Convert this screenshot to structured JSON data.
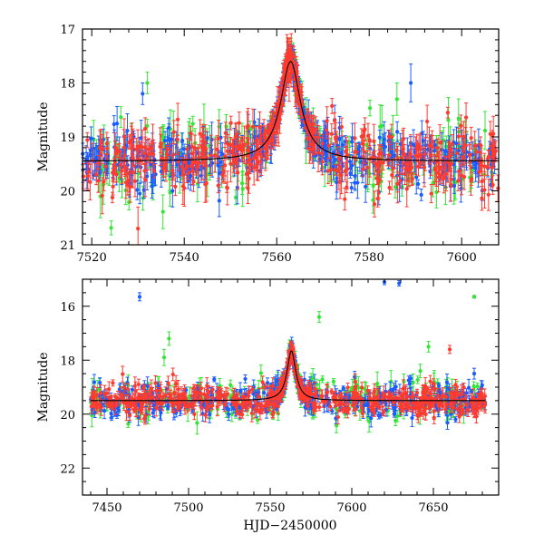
{
  "colors": {
    "green": "#33e633",
    "blue": "#1a5cff",
    "red": "#ff3a2e",
    "model": "#000000"
  },
  "chart_data": [
    {
      "type": "scatter",
      "title": "",
      "xlabel": "",
      "ylabel": "Magnitude",
      "xlim": [
        7518,
        7608
      ],
      "ylim": [
        21,
        17
      ],
      "x_ticks": [
        7520,
        7540,
        7560,
        7580,
        7600
      ],
      "x_tick_labels": [
        "7520",
        "7540",
        "7560",
        "7580",
        "7600"
      ],
      "y_ticks": [
        17,
        18,
        19,
        20,
        21
      ],
      "y_tick_labels": [
        "17",
        "18",
        "19",
        "20",
        "21"
      ],
      "baseline_mag": 19.45,
      "peak": {
        "x": 7563.0,
        "mag": 17.6,
        "width": 2.6
      },
      "x_range": [
        7518,
        7608
      ],
      "series": [
        {
          "name": "green",
          "color": "#33e633",
          "n_points": 230,
          "scatter": 0.35,
          "err": 0.25,
          "seed": 11
        },
        {
          "name": "blue",
          "color": "#1a5cff",
          "n_points": 480,
          "scatter": 0.25,
          "err": 0.2,
          "seed": 23
        },
        {
          "name": "red",
          "color": "#ff3a2e",
          "n_points": 460,
          "scatter": 0.3,
          "err": 0.22,
          "seed": 37
        }
      ],
      "outliers": [
        {
          "series": "blue",
          "x": 7531,
          "mag": 18.2,
          "err": 0.2
        },
        {
          "series": "green",
          "x": 7532,
          "mag": 18.0,
          "err": 0.2
        },
        {
          "series": "red",
          "x": 7597,
          "mag": 18.55,
          "err": 0.1
        },
        {
          "series": "blue",
          "x": 7589,
          "mag": 18.0,
          "err": 0.35
        },
        {
          "series": "green",
          "x": 7586,
          "mag": 18.3,
          "err": 0.3
        },
        {
          "series": "red",
          "x": 7530,
          "mag": 20.7,
          "err": 0.4
        }
      ]
    },
    {
      "type": "scatter",
      "title": "",
      "xlabel": "HJD−2450000",
      "ylabel": "Magnitude",
      "xlim": [
        7435,
        7690
      ],
      "ylim": [
        23,
        15
      ],
      "x_ticks": [
        7450,
        7500,
        7550,
        7600,
        7650
      ],
      "x_tick_labels": [
        "7450",
        "7500",
        "7550",
        "7600",
        "7650"
      ],
      "y_ticks": [
        16,
        18,
        20,
        22
      ],
      "y_tick_labels": [
        "16",
        "18",
        "20",
        "22"
      ],
      "baseline_mag": 19.5,
      "peak": {
        "x": 7563.0,
        "mag": 17.65,
        "width": 3.2
      },
      "x_range": [
        7440,
        7682
      ],
      "series": [
        {
          "name": "green",
          "color": "#33e633",
          "n_points": 260,
          "scatter": 0.4,
          "err": 0.25,
          "seed": 51
        },
        {
          "name": "blue",
          "color": "#1a5cff",
          "n_points": 520,
          "scatter": 0.3,
          "err": 0.2,
          "seed": 63
        },
        {
          "name": "red",
          "color": "#ff3a2e",
          "n_points": 560,
          "scatter": 0.28,
          "err": 0.2,
          "seed": 77
        }
      ],
      "outliers": [
        {
          "series": "blue",
          "x": 7470,
          "mag": 15.65,
          "err": 0.15
        },
        {
          "series": "blue",
          "x": 7620,
          "mag": 15.1,
          "err": 0.1
        },
        {
          "series": "blue",
          "x": 7629,
          "mag": 15.15,
          "err": 0.1
        },
        {
          "series": "green",
          "x": 7675,
          "mag": 15.65,
          "err": 0.05
        },
        {
          "series": "green",
          "x": 7580,
          "mag": 16.4,
          "err": 0.2
        },
        {
          "series": "green",
          "x": 7488,
          "mag": 17.2,
          "err": 0.25
        },
        {
          "series": "green",
          "x": 7485,
          "mag": 17.9,
          "err": 0.3
        },
        {
          "series": "green",
          "x": 7642,
          "mag": 18.4,
          "err": 0.25
        },
        {
          "series": "green",
          "x": 7647,
          "mag": 17.5,
          "err": 0.2
        },
        {
          "series": "blue",
          "x": 7675,
          "mag": 18.5,
          "err": 0.2
        },
        {
          "series": "red",
          "x": 7660,
          "mag": 17.6,
          "err": 0.15
        }
      ]
    }
  ]
}
